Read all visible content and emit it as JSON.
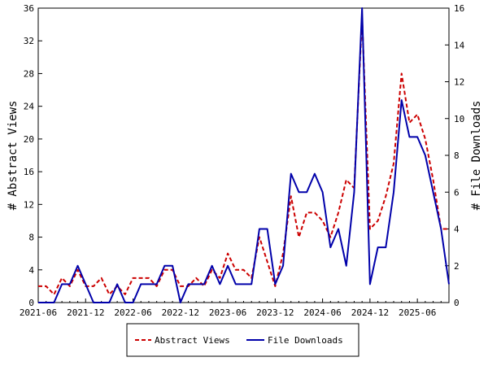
{
  "chart_data": {
    "type": "line",
    "title": "",
    "xlabel": "",
    "ylabel": "# Abstract Views",
    "ylabel_right": "# File Downloads",
    "x_tick_labels": [
      "2021-06",
      "2021-12",
      "2022-06",
      "2022-12",
      "2023-06",
      "2023-12",
      "2024-06",
      "2024-12",
      "2025-06"
    ],
    "ylim": [
      0,
      36
    ],
    "y_ticks": [
      "0",
      "4",
      "8",
      "12",
      "16",
      "20",
      "24",
      "28",
      "32",
      "36"
    ],
    "ylim_right": [
      0,
      16
    ],
    "y_ticks_right": [
      "0",
      "2",
      "4",
      "6",
      "8",
      "10",
      "12",
      "14",
      "16"
    ],
    "grid": false,
    "legend_position": "bottom",
    "x": [
      "2021-06",
      "2021-07",
      "2021-08",
      "2021-09",
      "2021-10",
      "2021-11",
      "2021-12",
      "2022-01",
      "2022-02",
      "2022-03",
      "2022-04",
      "2022-05",
      "2022-06",
      "2022-07",
      "2022-08",
      "2022-09",
      "2022-10",
      "2022-11",
      "2022-12",
      "2023-01",
      "2023-02",
      "2023-03",
      "2023-04",
      "2023-05",
      "2023-06",
      "2023-07",
      "2023-08",
      "2023-09",
      "2023-10",
      "2023-11",
      "2023-12",
      "2024-01",
      "2024-02",
      "2024-03",
      "2024-04",
      "2024-05",
      "2024-06",
      "2024-07",
      "2024-08",
      "2024-09",
      "2024-10",
      "2024-11",
      "2024-12",
      "2025-01",
      "2025-02",
      "2025-03",
      "2025-04",
      "2025-05",
      "2025-06",
      "2025-07",
      "2025-08",
      "2025-09",
      "2025-10"
    ],
    "series": [
      {
        "name": "Abstract Views",
        "axis": "left",
        "color": "#cc0000",
        "dash": "dashed",
        "values": [
          2,
          2,
          1,
          3,
          2,
          4,
          2,
          2,
          3,
          1,
          2,
          1,
          3,
          3,
          3,
          2,
          4,
          4,
          2,
          2,
          3,
          2,
          4,
          3,
          6,
          4,
          4,
          3,
          8,
          5,
          2,
          6,
          13,
          8,
          11,
          11,
          10,
          8,
          11,
          15,
          14,
          35,
          9,
          10,
          13,
          17,
          28,
          22,
          23,
          20,
          15,
          9,
          9
        ]
      },
      {
        "name": "File Downloads",
        "axis": "right",
        "color": "#0000aa",
        "dash": "solid",
        "values": [
          0,
          0,
          0,
          1,
          1,
          2,
          1,
          0,
          0,
          0,
          1,
          0,
          0,
          1,
          1,
          1,
          2,
          2,
          0,
          1,
          1,
          1,
          2,
          1,
          2,
          1,
          1,
          1,
          4,
          4,
          1,
          2,
          7,
          6,
          6,
          7,
          6,
          3,
          4,
          2,
          6,
          16,
          1,
          3,
          3,
          6,
          11,
          9,
          9,
          8,
          6,
          4,
          1
        ]
      }
    ]
  },
  "legend": {
    "items": [
      {
        "label": "Abstract Views",
        "color": "#cc0000",
        "dash": "dashed"
      },
      {
        "label": "File Downloads",
        "color": "#0000aa",
        "dash": "solid"
      }
    ]
  }
}
